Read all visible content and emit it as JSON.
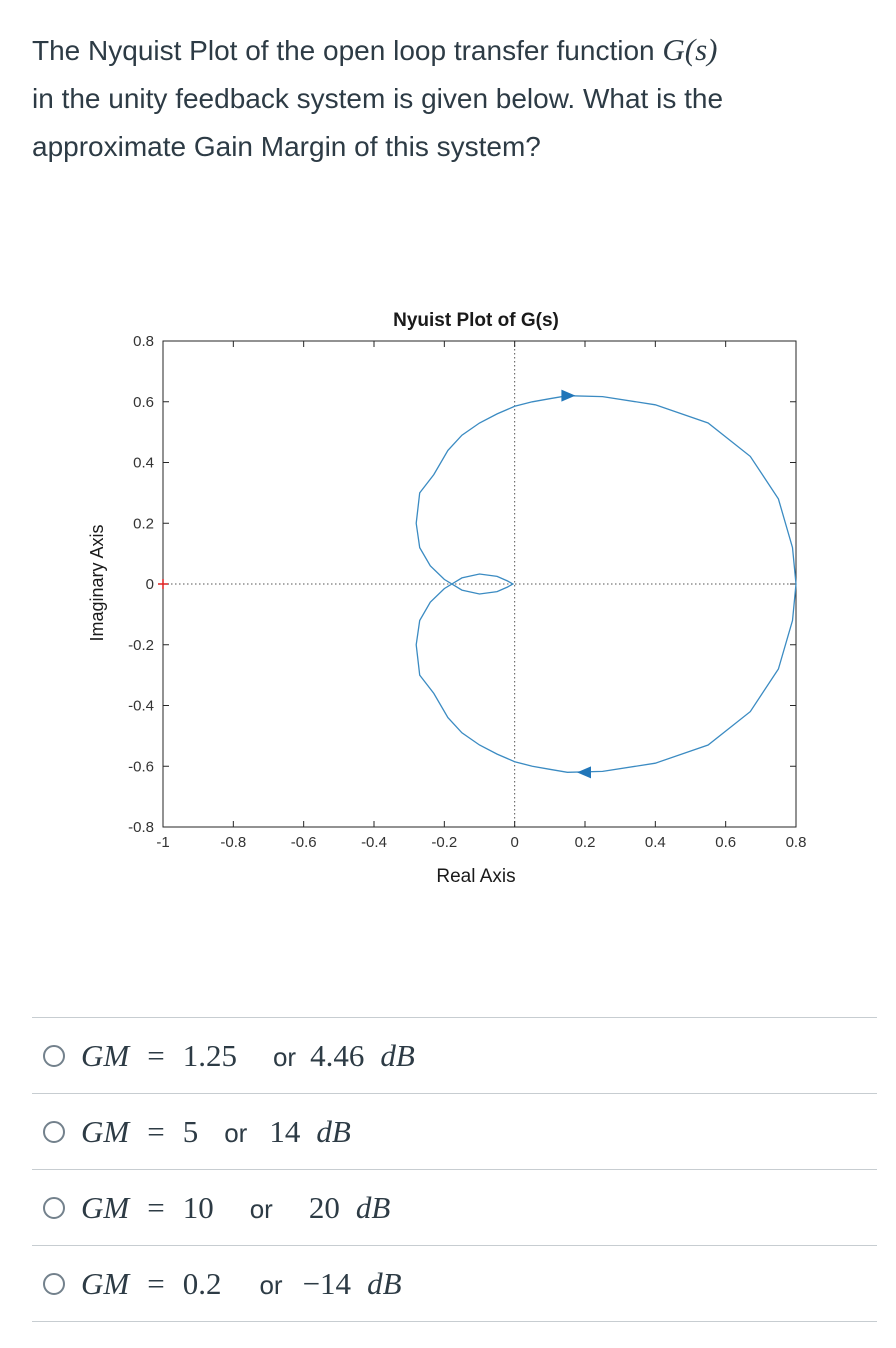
{
  "question": {
    "line1_text": "The Nyquist Plot of the open loop transfer function ",
    "line1_math": "G(s)",
    "line2_text": "in the unity feedback system is given below. What is the",
    "line3_text": "approximate Gain Margin of this system?"
  },
  "chart_data": {
    "type": "line",
    "title": "Nyuist Plot of G(s)",
    "xlabel": "Real Axis",
    "ylabel": "Imaginary Axis",
    "xlim": [
      -1,
      0.8
    ],
    "ylim": [
      -0.8,
      0.8
    ],
    "x_ticks": [
      "-1",
      "-0.8",
      "-0.6",
      "-0.4",
      "-0.2",
      "0",
      "0.2",
      "0.4",
      "0.6",
      "0.8"
    ],
    "y_ticks": [
      "0.8",
      "0.6",
      "0.4",
      "0.2",
      "0",
      "-0.2",
      "-0.4",
      "-0.6",
      "-0.8"
    ],
    "critical_point": [
      -1,
      0
    ],
    "grid": false,
    "series": [
      {
        "color": "#3b8bc2",
        "upper_branch": [
          [
            0.8,
            0.0
          ],
          [
            0.79,
            0.12
          ],
          [
            0.75,
            0.28
          ],
          [
            0.67,
            0.42
          ],
          [
            0.55,
            0.53
          ],
          [
            0.4,
            0.59
          ],
          [
            0.25,
            0.617
          ],
          [
            0.15,
            0.62
          ],
          [
            0.1,
            0.61
          ],
          [
            0.05,
            0.6
          ],
          [
            0.0,
            0.585
          ],
          [
            -0.05,
            0.56
          ],
          [
            -0.1,
            0.53
          ],
          [
            -0.15,
            0.49
          ],
          [
            -0.19,
            0.44
          ],
          [
            -0.23,
            0.36
          ],
          [
            -0.27,
            0.3
          ],
          [
            -0.28,
            0.2
          ],
          [
            -0.27,
            0.12
          ],
          [
            -0.24,
            0.06
          ],
          [
            -0.2,
            0.015
          ],
          [
            -0.15,
            -0.02
          ],
          [
            -0.1,
            -0.033
          ],
          [
            -0.05,
            -0.025
          ],
          [
            -0.02,
            -0.01
          ],
          [
            -0.005,
            0.0
          ]
        ],
        "arrow_at": [
          0.15,
          0.62
        ],
        "arrow_at_lower": [
          0.2,
          -0.62
        ]
      }
    ]
  },
  "options": [
    {
      "lhs": "GM",
      "eq": "=",
      "value": "1.25",
      "or": "or",
      "db": "4.46",
      "unit": "dB"
    },
    {
      "lhs": "GM",
      "eq": "=",
      "value": "5",
      "or": "or",
      "db": "14",
      "unit": "dB"
    },
    {
      "lhs": "GM",
      "eq": "=",
      "value": "10",
      "or": "or",
      "db": "20",
      "unit": "dB"
    },
    {
      "lhs": "GM",
      "eq": "=",
      "value": "0.2",
      "or": "or",
      "db": "−14",
      "unit": "dB"
    }
  ]
}
